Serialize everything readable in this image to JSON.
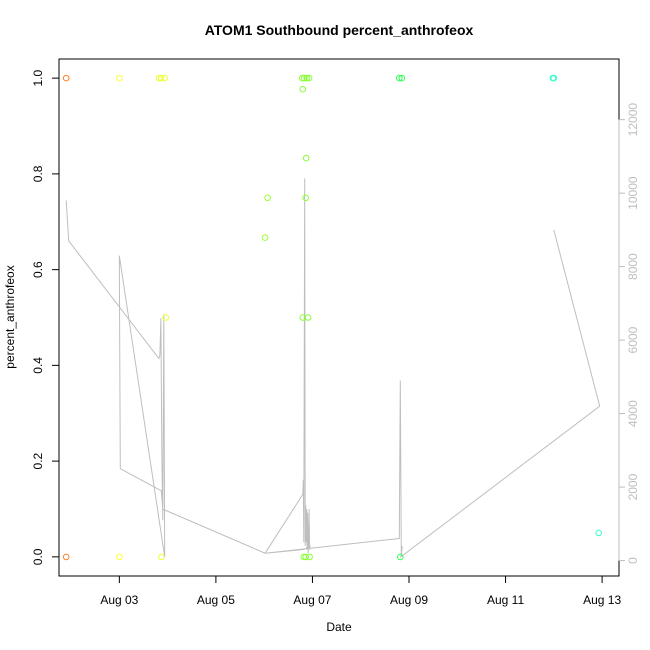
{
  "chart_data": {
    "type": "scatter",
    "title": "ATOM1 Southbound percent_anthrofeox",
    "xlabel": "Date",
    "ylabel": "percent_anthrofeox",
    "x_ticks": [
      "Aug 03",
      "Aug 05",
      "Aug 07",
      "Aug 09",
      "Aug 11",
      "Aug 13"
    ],
    "x_tick_values": [
      3.0,
      5.0,
      7.0,
      9.0,
      11.0,
      13.0
    ],
    "xlim": [
      1.75,
      13.35
    ],
    "y_ticks": [
      "0.0",
      "0.2",
      "0.4",
      "0.6",
      "0.8",
      "1.0"
    ],
    "y_tick_values": [
      0.0,
      0.2,
      0.4,
      0.6,
      0.8,
      1.0
    ],
    "ylim": [
      -0.04,
      1.04
    ],
    "y2_ticks": [
      "0",
      "2000",
      "4000",
      "6000",
      "8000",
      "10000",
      "12000"
    ],
    "y2_tick_values": [
      0,
      2000,
      4000,
      6000,
      8000,
      10000,
      12000
    ],
    "y2lim": [
      -420,
      13650
    ],
    "grid": false,
    "points": [
      {
        "x": 1.9,
        "y": 1.0,
        "color": "#ff7f2a"
      },
      {
        "x": 1.9,
        "y": 0.0,
        "color": "#ff7f2a"
      },
      {
        "x": 3.0,
        "y": 1.0,
        "color": "#ffff33"
      },
      {
        "x": 3.0,
        "y": 0.0,
        "color": "#ffff33"
      },
      {
        "x": 3.82,
        "y": 1.0,
        "color": "#eeff33"
      },
      {
        "x": 3.87,
        "y": 1.0,
        "color": "#eeff33"
      },
      {
        "x": 3.94,
        "y": 1.0,
        "color": "#eeff33"
      },
      {
        "x": 3.87,
        "y": 0.0,
        "color": "#eeff33"
      },
      {
        "x": 3.96,
        "y": 0.5,
        "color": "#eeff33"
      },
      {
        "x": 6.02,
        "y": 0.667,
        "color": "#99ff33"
      },
      {
        "x": 6.07,
        "y": 0.75,
        "color": "#99ff33"
      },
      {
        "x": 6.79,
        "y": 1.0,
        "color": "#88ff33"
      },
      {
        "x": 6.83,
        "y": 1.0,
        "color": "#88ff33"
      },
      {
        "x": 6.88,
        "y": 1.0,
        "color": "#88ff33"
      },
      {
        "x": 6.93,
        "y": 1.0,
        "color": "#88ff33"
      },
      {
        "x": 6.8,
        "y": 0.977,
        "color": "#88ff33"
      },
      {
        "x": 6.87,
        "y": 0.833,
        "color": "#88ff33"
      },
      {
        "x": 6.86,
        "y": 0.75,
        "color": "#88ff33"
      },
      {
        "x": 6.8,
        "y": 0.5,
        "color": "#88ff33"
      },
      {
        "x": 6.91,
        "y": 0.5,
        "color": "#88ff33"
      },
      {
        "x": 6.82,
        "y": 0.0,
        "color": "#88ff33"
      },
      {
        "x": 6.86,
        "y": 0.0,
        "color": "#88ff33"
      },
      {
        "x": 6.94,
        "y": 0.0,
        "color": "#88ff33"
      },
      {
        "x": 8.8,
        "y": 1.0,
        "color": "#33ff55"
      },
      {
        "x": 8.85,
        "y": 1.0,
        "color": "#33ff55"
      },
      {
        "x": 8.82,
        "y": 0.0,
        "color": "#33ff55"
      },
      {
        "x": 11.98,
        "y": 1.0,
        "color": "#33ffcc"
      },
      {
        "x": 12.0,
        "y": 1.0,
        "color": "#33ffcc"
      },
      {
        "x": 12.93,
        "y": 0.05,
        "color": "#33ffcc"
      }
    ],
    "line_series": {
      "axis": "right",
      "color": "#bebebe",
      "x": [
        1.9,
        1.95,
        3.82,
        3.84,
        3.86,
        3.88,
        3.9,
        3.92,
        3.94,
        3.0,
        3.02,
        3.87,
        3.9,
        6.02,
        6.8,
        6.81,
        6.82,
        6.84,
        6.85,
        6.86,
        6.87,
        6.88,
        6.89,
        6.9,
        6.91,
        6.92,
        6.93,
        6.94,
        6.95,
        6.82,
        6.02,
        8.8,
        8.82,
        8.84,
        8.86,
        8.83,
        12.95,
        12.0
      ],
      "y": [
        9800,
        8700,
        5500,
        5600,
        6600,
        3000,
        1100,
        6700,
        100,
        8300,
        2500,
        1900,
        1400,
        200,
        1800,
        2200,
        500,
        10400,
        400,
        1500,
        500,
        1400,
        300,
        1300,
        200,
        500,
        1400,
        300,
        400,
        300,
        200,
        600,
        4900,
        100,
        400,
        100,
        4200,
        9000
      ]
    }
  }
}
